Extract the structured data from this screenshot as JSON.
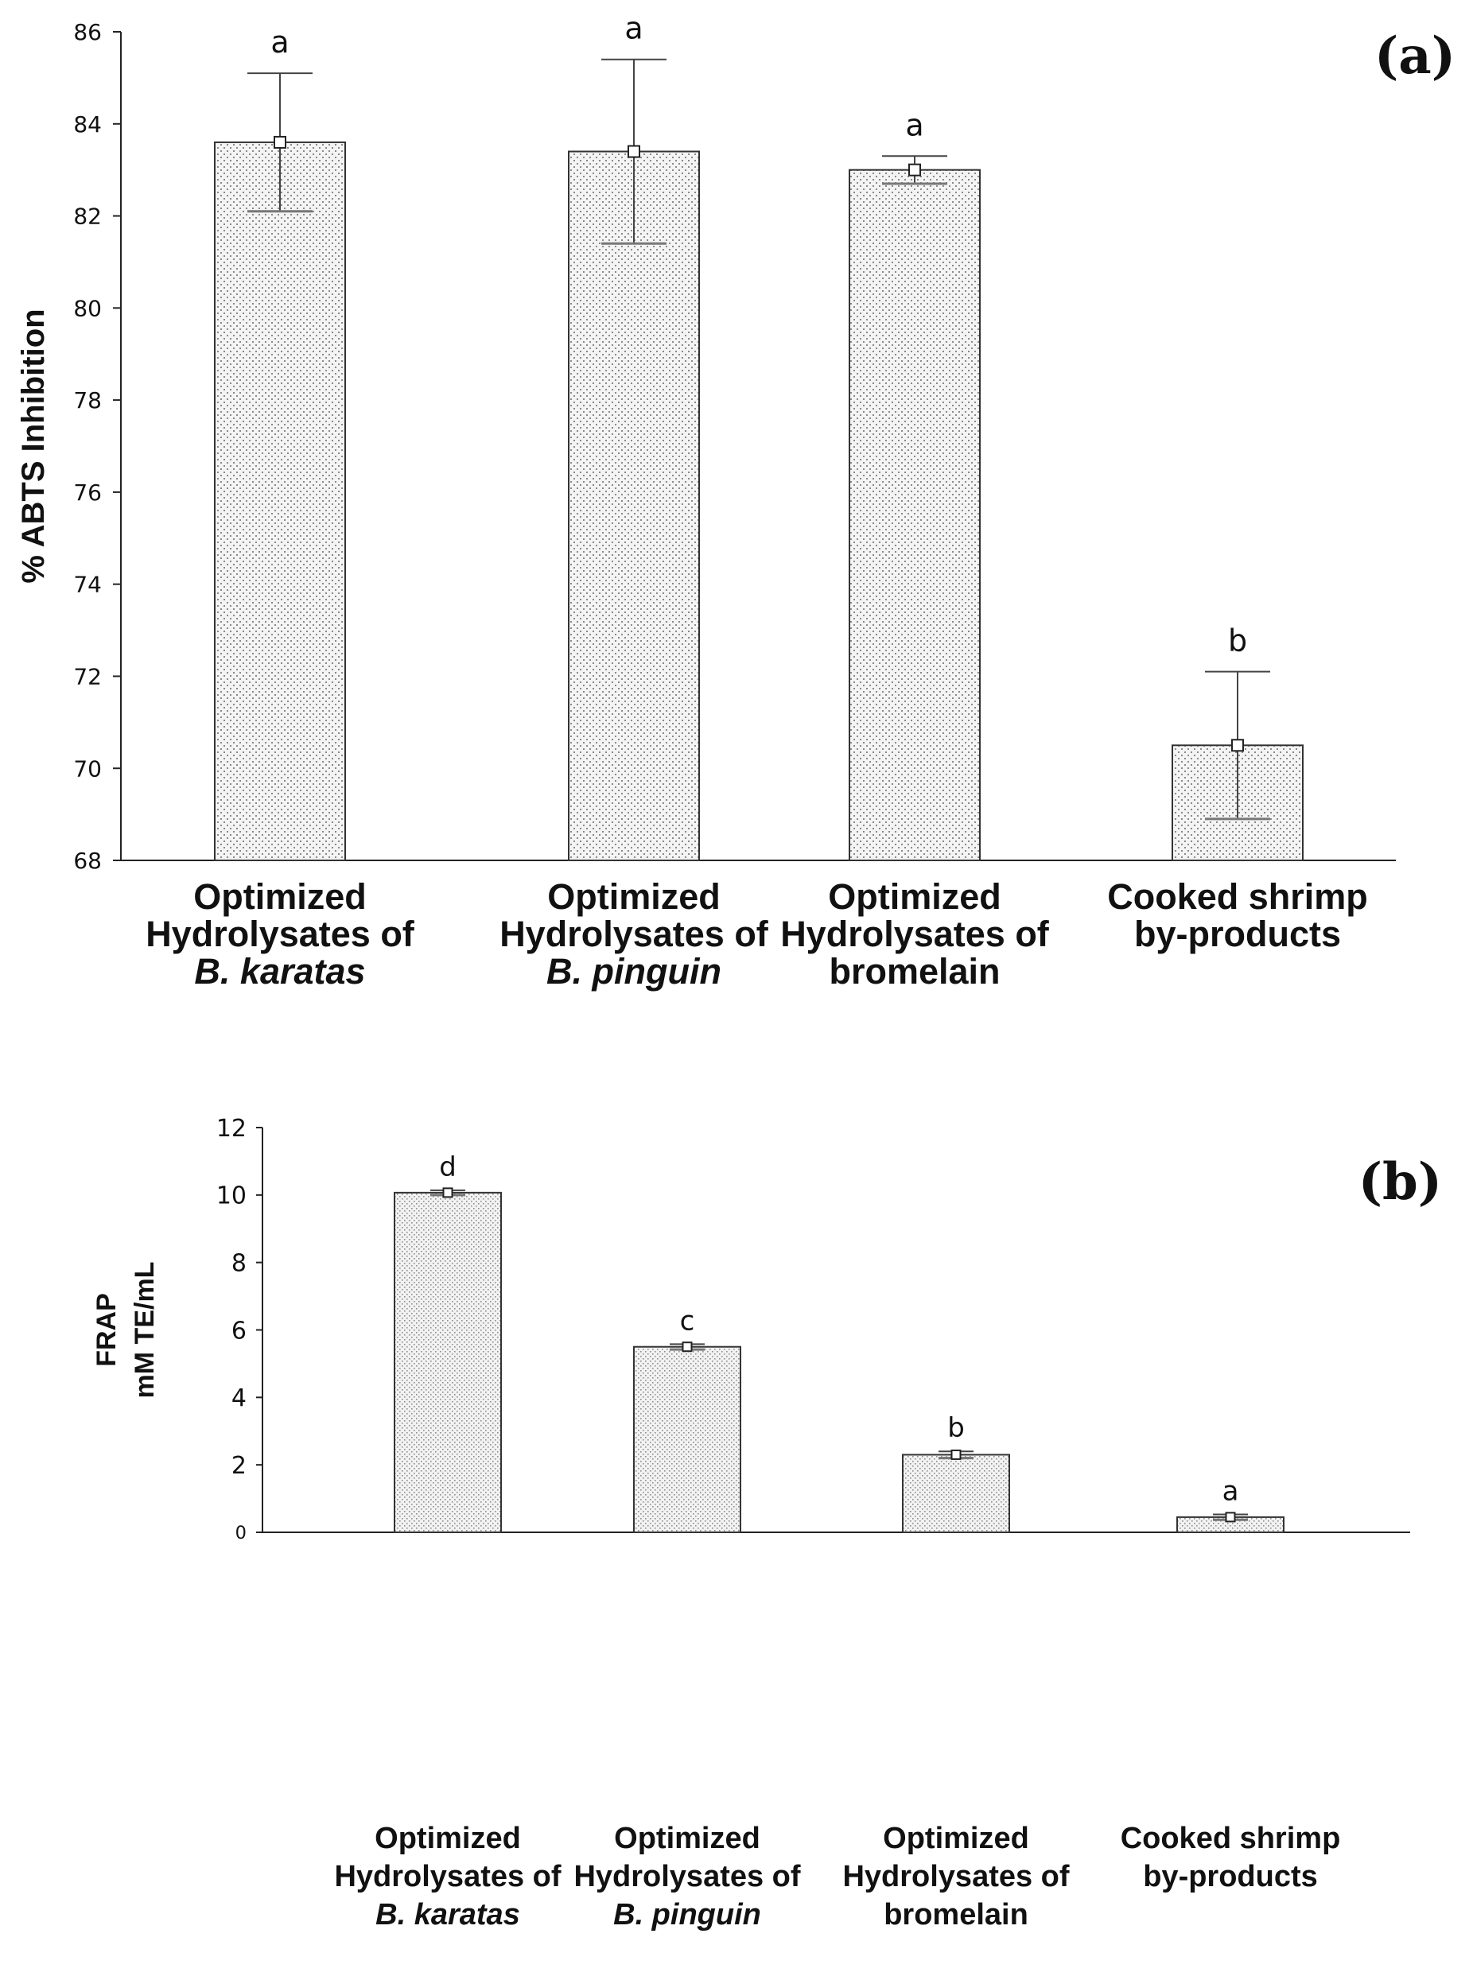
{
  "chart_data": [
    {
      "type": "bar",
      "panel_label": "(a)",
      "ylabel": "% ABTS Inhibition",
      "ylim": [
        68,
        86
      ],
      "yticks": [
        68,
        70,
        72,
        74,
        76,
        78,
        80,
        82,
        84,
        86
      ],
      "categories": [
        [
          "Optimized",
          "Hydrolysates of",
          "B. karatas"
        ],
        [
          "Optimized",
          "Hydrolysates of",
          "B. pinguin"
        ],
        [
          "Optimized",
          "Hydrolysates of",
          "bromelain"
        ],
        [
          "Cooked shrimp",
          "by-products"
        ]
      ],
      "italic_last_line": [
        true,
        true,
        false,
        false
      ],
      "values": [
        83.6,
        83.4,
        83.0,
        70.5
      ],
      "errors": [
        1.5,
        2.0,
        0.3,
        1.6
      ],
      "significance": [
        "a",
        "a",
        "a",
        "b"
      ]
    },
    {
      "type": "bar",
      "panel_label": "(b)",
      "ylabel": [
        "FRAP",
        "mM TE/mL"
      ],
      "ylim": [
        0,
        12
      ],
      "yticks": [
        0,
        2,
        4,
        6,
        8,
        10,
        12
      ],
      "categories": [
        [
          "Optimized",
          "Hydrolysates of",
          "B. karatas"
        ],
        [
          "Optimized",
          "Hydrolysates of",
          "B. pinguin"
        ],
        [
          "Optimized",
          "Hydrolysates of",
          "bromelain"
        ],
        [
          "Cooked shrimp",
          "by-products"
        ]
      ],
      "italic_last_line": [
        true,
        true,
        false,
        false
      ],
      "values": [
        10.07,
        5.5,
        2.3,
        0.45
      ],
      "errors": [
        0.07,
        0.08,
        0.1,
        0.08
      ],
      "significance": [
        "d",
        "c",
        "b",
        "a"
      ]
    }
  ]
}
